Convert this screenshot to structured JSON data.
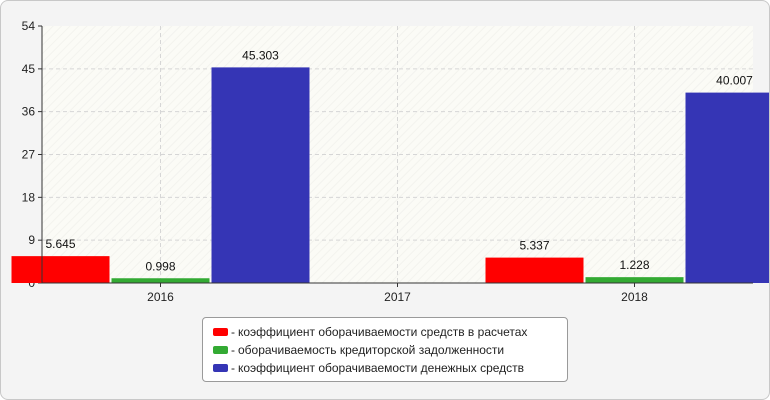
{
  "chart_data": {
    "type": "bar",
    "categories": [
      "2016",
      "2017",
      "2018"
    ],
    "series": [
      {
        "name": "коэффициент оборачиваемости средств в расчетах",
        "color": "#ff0000",
        "values": [
          5.645,
          null,
          5.337
        ],
        "labels": [
          "5.645",
          "",
          "5.337"
        ]
      },
      {
        "name": "оборачиваемость кредиторской задолженности",
        "color": "#33aa33",
        "values": [
          0.998,
          null,
          1.228
        ],
        "labels": [
          "0.998",
          "",
          "1.228"
        ]
      },
      {
        "name": "коэффициент оборачиваемости денежных средств",
        "color": "#3535b5",
        "values": [
          45.303,
          null,
          40.007
        ],
        "labels": [
          "45.303",
          "",
          "40.007"
        ]
      }
    ],
    "yticks": [
      "0",
      "9",
      "18",
      "27",
      "36",
      "45",
      "54"
    ],
    "ylim": [
      0,
      54
    ],
    "grid": true,
    "legend_position": "bottom-center"
  },
  "legend": {
    "dash": "-"
  }
}
